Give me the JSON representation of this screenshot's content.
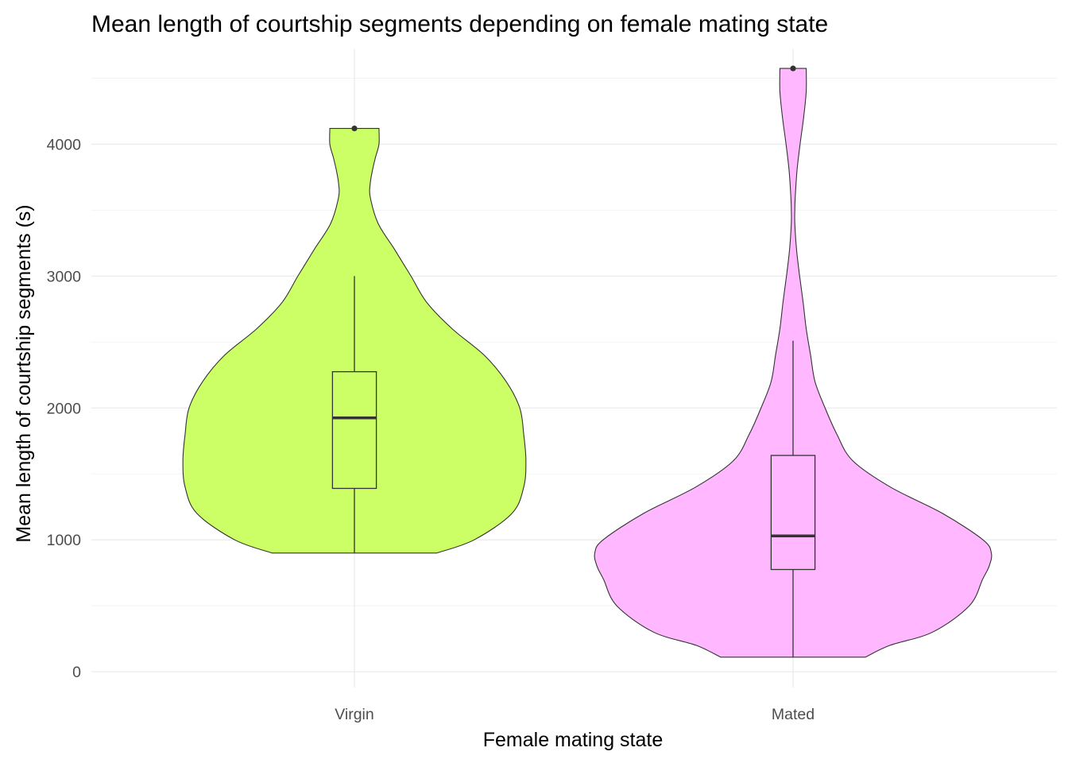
{
  "chart_data": {
    "type": "violin",
    "title": "Mean length of courtship segments depending on female mating state",
    "xlabel": "Female mating state",
    "ylabel": "Mean length of courtship segments (s)",
    "ylim": [
      -120,
      4720
    ],
    "y_ticks": [
      0,
      1000,
      2000,
      3000,
      4000
    ],
    "y_tick_labels": [
      "0",
      "1000",
      "2000",
      "3000",
      "4000"
    ],
    "categories": [
      "Virgin",
      "Mated"
    ],
    "grid": true,
    "legend": "none",
    "series": [
      {
        "name": "Virgin",
        "color": "#ccff66",
        "outline_color": "#333333",
        "violin": {
          "y": [
            900,
            1000,
            1200,
            1400,
            1600,
            1800,
            2000,
            2200,
            2400,
            2600,
            2800,
            3000,
            3200,
            3400,
            3600,
            3700,
            3800,
            3900,
            4000,
            4120
          ],
          "half_width": [
            0.188,
            0.273,
            0.359,
            0.386,
            0.391,
            0.386,
            0.377,
            0.346,
            0.296,
            0.223,
            0.165,
            0.129,
            0.092,
            0.054,
            0.036,
            0.036,
            0.041,
            0.048,
            0.056,
            0.056
          ]
        },
        "box": {
          "lower_whisker": 900,
          "q1": 1390,
          "median": 1925,
          "q3": 2275,
          "upper_whisker": 3000
        },
        "outliers": [
          4120
        ]
      },
      {
        "name": "Mated",
        "color": "#ffb8ff",
        "outline_color": "#333333",
        "violin": {
          "y": [
            110,
            200,
            300,
            500,
            700,
            800,
            900,
            1000,
            1200,
            1400,
            1600,
            1800,
            2000,
            2200,
            2400,
            2600,
            2800,
            3000,
            3200,
            3400,
            3500,
            3600,
            3800,
            4000,
            4200,
            4400,
            4575
          ],
          "half_width": [
            0.165,
            0.221,
            0.318,
            0.402,
            0.432,
            0.447,
            0.452,
            0.433,
            0.341,
            0.222,
            0.136,
            0.1,
            0.073,
            0.05,
            0.04,
            0.03,
            0.023,
            0.015,
            0.008,
            0.004,
            0.004,
            0.005,
            0.009,
            0.016,
            0.024,
            0.03,
            0.03
          ]
        },
        "box": {
          "lower_whisker": 110,
          "q1": 775,
          "median": 1030,
          "q3": 1640,
          "upper_whisker": 2510
        },
        "outliers": [
          4575
        ]
      }
    ]
  }
}
